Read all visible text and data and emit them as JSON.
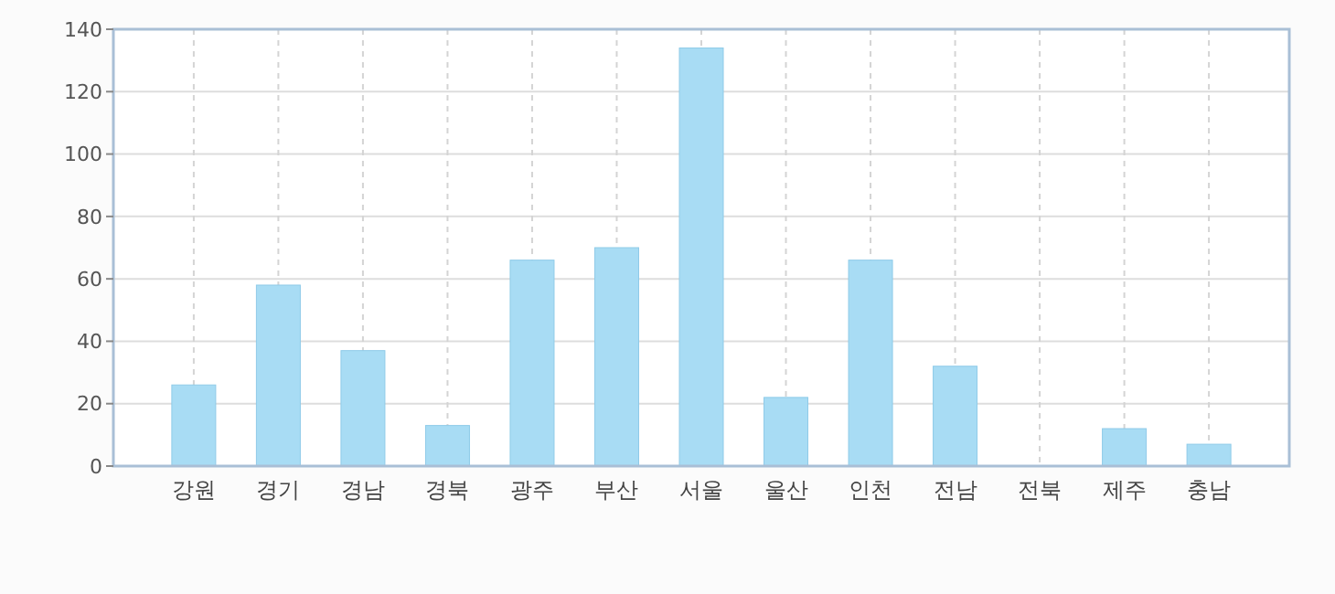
{
  "chart_data": {
    "type": "bar",
    "categories": [
      "강원",
      "경기",
      "경남",
      "경북",
      "광주",
      "부산",
      "서울",
      "울산",
      "인천",
      "전남",
      "전북",
      "제주",
      "충남"
    ],
    "series": [
      {
        "color": "#a8dcf4",
        "values": [
          26,
          58,
          37,
          13,
          66,
          70,
          134,
          22,
          66,
          32,
          0,
          12,
          7
        ]
      }
    ],
    "ylim": [
      0,
      140
    ],
    "yticks": [
      0,
      20,
      40,
      60,
      80,
      100,
      120,
      140
    ],
    "grid": true,
    "legend": false
  }
}
